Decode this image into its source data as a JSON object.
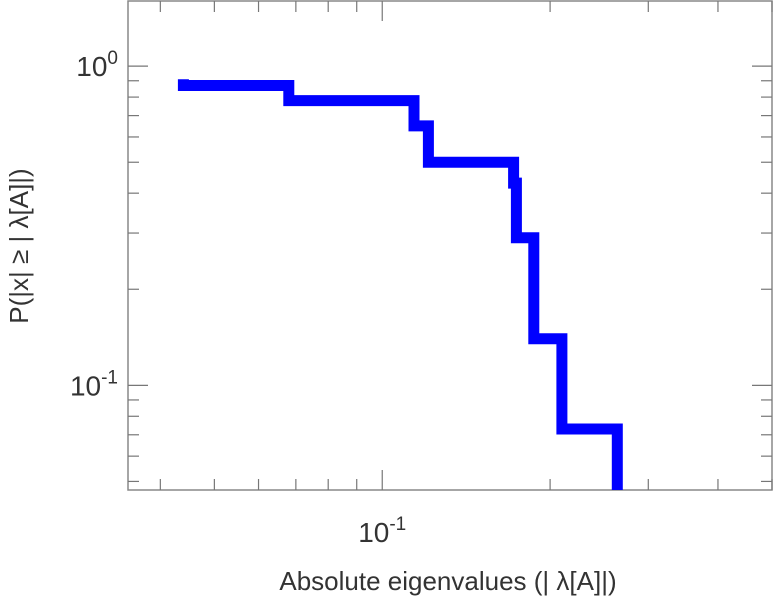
{
  "chart_data": {
    "type": "line",
    "subtype": "step",
    "title": "",
    "xlabel": "Absolute eigenvalues (|     λ[A]|)",
    "ylabel": "P(|x|  ≥ | λ[A]|)",
    "xscale": "log",
    "yscale": "log",
    "xlim": [
      0.035,
      0.5
    ],
    "ylim": [
      0.047,
      1.6
    ],
    "x_ticklabels": [
      {
        "value": 0.1,
        "base": "10",
        "exp": "-1"
      }
    ],
    "y_ticklabels": [
      {
        "value": 1.0,
        "base": "10",
        "exp": "0"
      },
      {
        "value": 0.1,
        "base": "10",
        "exp": "-1"
      }
    ],
    "grid": false,
    "legend": "none",
    "series": [
      {
        "color": "#0000ff",
        "x": [
          0.044,
          0.044,
          0.068,
          0.068,
          0.114,
          0.114,
          0.121,
          0.121,
          0.172,
          0.172,
          0.174,
          0.174,
          0.187,
          0.187,
          0.21,
          0.21,
          0.264,
          0.264
        ],
        "y": [
          0.91,
          0.87,
          0.87,
          0.78,
          0.78,
          0.65,
          0.65,
          0.5,
          0.5,
          0.43,
          0.43,
          0.29,
          0.29,
          0.14,
          0.14,
          0.073,
          0.073,
          0.047
        ]
      }
    ]
  }
}
